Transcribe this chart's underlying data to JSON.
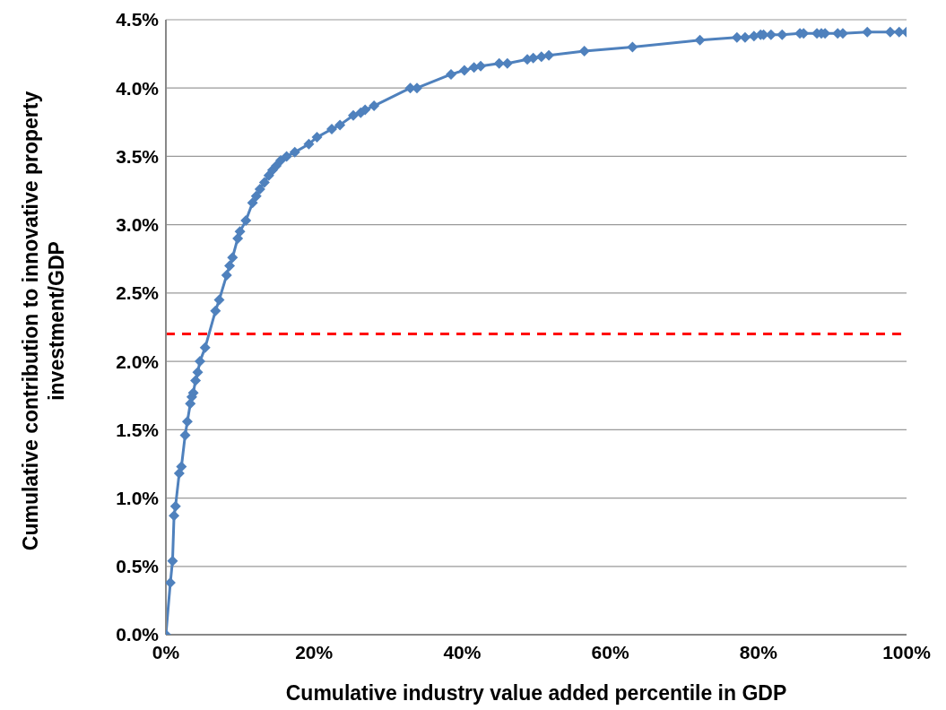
{
  "chart_data": {
    "type": "line",
    "xlabel": "Cumulative industry value added percentile in GDP",
    "ylabel": "Cumulative contribution to innovative property investment/GDP",
    "xlim": [
      0,
      100
    ],
    "xticks": [
      {
        "value": 0,
        "label": "0%"
      },
      {
        "value": 20,
        "label": "20%"
      },
      {
        "value": 40,
        "label": "40%"
      },
      {
        "value": 60,
        "label": "60%"
      },
      {
        "value": 80,
        "label": "80%"
      },
      {
        "value": 100,
        "label": "100%"
      }
    ],
    "ylim": [
      0,
      4.5
    ],
    "yticks": [
      {
        "value": 0,
        "label": "0.0%"
      },
      {
        "value": 0.5,
        "label": "0.5%"
      },
      {
        "value": 1,
        "label": "1.0%"
      },
      {
        "value": 1.5,
        "label": "1.5%"
      },
      {
        "value": 2,
        "label": "2.0%"
      },
      {
        "value": 2.5,
        "label": "2.5%"
      },
      {
        "value": 3,
        "label": "3.0%"
      },
      {
        "value": 3.5,
        "label": "3.5%"
      },
      {
        "value": 4,
        "label": "4.0%"
      },
      {
        "value": 4.5,
        "label": "4.5%"
      }
    ],
    "grid": "y",
    "marker": "diamond",
    "line_style": "solid",
    "ref_lines": [
      {
        "axis": "y",
        "value": 2.2,
        "label": null,
        "color": "#ff0000",
        "line_style": "dashed"
      }
    ],
    "series": [
      {
        "color": "#4f81bd",
        "x": [
          0,
          0.6,
          0.9,
          1.1,
          1.3,
          1.8,
          2.1,
          2.6,
          2.9,
          3.3,
          3.5,
          3.7,
          4.0,
          4.3,
          4.6,
          5.3,
          6.7,
          7.2,
          8.2,
          8.6,
          9.0,
          9.7,
          10.0,
          10.8,
          11.7,
          12.2,
          12.7,
          13.3,
          13.9,
          14.4,
          14.9,
          15.5,
          16.3,
          17.4,
          19.3,
          20.4,
          22.4,
          23.5,
          25.3,
          26.3,
          26.9,
          28.1,
          33.0,
          33.9,
          38.5,
          40.3,
          41.6,
          42.5,
          45.0,
          46.1,
          48.8,
          49.6,
          50.7,
          51.7,
          56.5,
          63.0,
          72.1,
          77.1,
          78.2,
          79.4,
          80.3,
          80.7,
          81.7,
          83.2,
          85.6,
          86.1,
          87.9,
          88.5,
          89.0,
          90.7,
          91.4,
          94.7,
          97.8,
          99.0,
          100
        ],
        "values": [
          0,
          0.38,
          0.54,
          0.87,
          0.94,
          1.18,
          1.23,
          1.46,
          1.56,
          1.69,
          1.74,
          1.77,
          1.86,
          1.92,
          2.0,
          2.1,
          2.37,
          2.45,
          2.63,
          2.7,
          2.76,
          2.9,
          2.95,
          3.03,
          3.16,
          3.21,
          3.26,
          3.31,
          3.36,
          3.4,
          3.43,
          3.47,
          3.5,
          3.53,
          3.59,
          3.64,
          3.7,
          3.73,
          3.8,
          3.82,
          3.84,
          3.87,
          4.0,
          4.0,
          4.1,
          4.13,
          4.15,
          4.16,
          4.18,
          4.18,
          4.21,
          4.22,
          4.23,
          4.24,
          4.27,
          4.3,
          4.35,
          4.37,
          4.37,
          4.38,
          4.39,
          4.39,
          4.39,
          4.39,
          4.4,
          4.4,
          4.4,
          4.4,
          4.4,
          4.4,
          4.4,
          4.41,
          4.41,
          4.41,
          4.41
        ]
      }
    ]
  }
}
